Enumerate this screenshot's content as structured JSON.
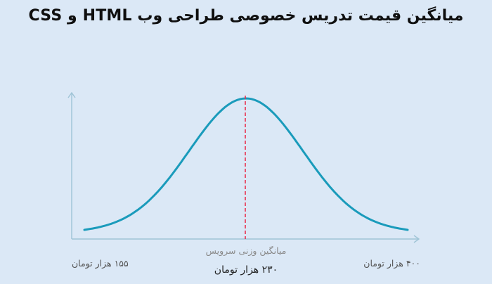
{
  "title": "میانگین قیمت تدریس خصوصی طراحی وب HTML و CSS",
  "labels": {
    "min": "۱۵۵ هزار تومان",
    "max": "۴۰۰ هزار تومان",
    "center_caption": "میانگین وزنی سرویس",
    "center_value": "۲۳۰ هزار تومان"
  },
  "colors": {
    "background": "#dbe8f6",
    "curve": "#1a9bbb",
    "axis": "#9fc4d6",
    "marker": "#e8314f"
  },
  "chart_data": {
    "type": "line",
    "title": "میانگین قیمت تدریس خصوصی طراحی وب HTML و CSS",
    "xlabel": "",
    "ylabel": "",
    "x_unit": "هزار تومان",
    "x_range": [
      155,
      400
    ],
    "mean": 230,
    "grid": false,
    "curve": "bell-shaped distribution",
    "annotations": [
      {
        "x": 155,
        "text": "۱۵۵ هزار تومان"
      },
      {
        "x": 400,
        "text": "۴۰۰ هزار تومان"
      },
      {
        "x": 230,
        "text": "میانگین وزنی سرویس"
      },
      {
        "x": 230,
        "text": "۲۳۰ هزار تومان"
      }
    ]
  }
}
